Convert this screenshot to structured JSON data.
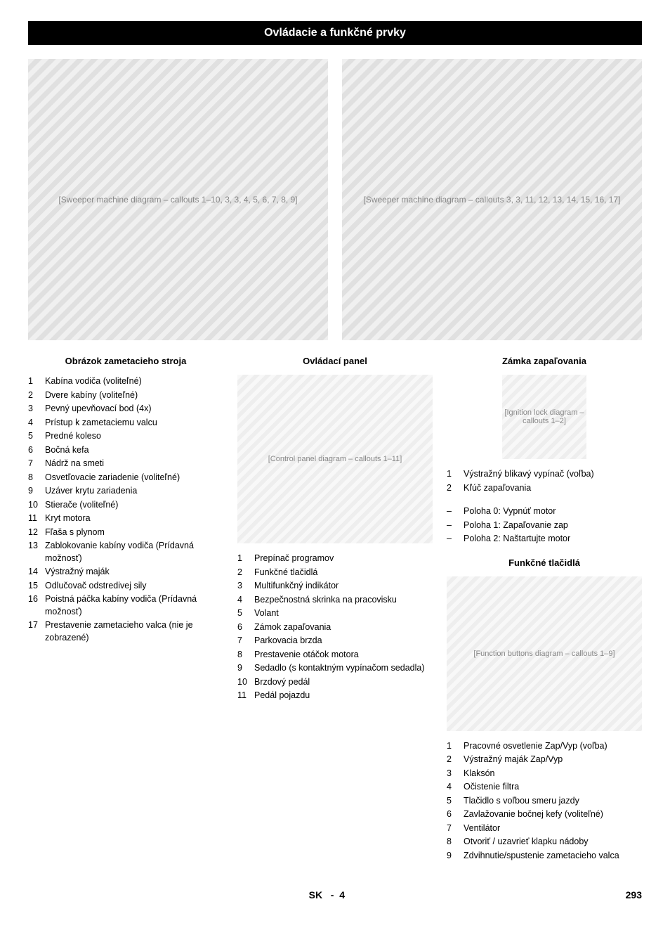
{
  "header": {
    "title": "Ovládacie a funkčné prvky"
  },
  "figures": {
    "left": {
      "alt": "[Sweeper machine diagram – callouts 1–10, 3, 3, 4, 5, 6, 7, 8, 9]",
      "callouts": [
        "1",
        "2",
        "3",
        "3",
        "4",
        "5",
        "6",
        "7",
        "8",
        "9",
        "10"
      ]
    },
    "right": {
      "alt": "[Sweeper machine diagram – callouts 3, 3, 11, 12, 13, 14, 15, 16, 17]",
      "callouts": [
        "14",
        "16",
        "15",
        "17",
        "13",
        "12",
        "3",
        "11",
        "3"
      ]
    }
  },
  "sections": {
    "sweeper": {
      "heading": "Obrázok zametacieho stroja",
      "items": [
        {
          "n": "1",
          "t": "Kabína vodiča (voliteľné)"
        },
        {
          "n": "2",
          "t": "Dvere kabíny (voliteľné)"
        },
        {
          "n": "3",
          "t": "Pevný upevňovací bod (4x)"
        },
        {
          "n": "4",
          "t": "Prístup k zametaciemu valcu"
        },
        {
          "n": "5",
          "t": "Predné koleso"
        },
        {
          "n": "6",
          "t": "Bočná kefa"
        },
        {
          "n": "7",
          "t": "Nádrž na smeti"
        },
        {
          "n": "8",
          "t": "Osvetľovacie zariadenie (voliteľné)"
        },
        {
          "n": "9",
          "t": "Uzáver krytu zariadenia"
        },
        {
          "n": "10",
          "t": "Stierače (voliteľné)"
        },
        {
          "n": "11",
          "t": "Kryt motora"
        },
        {
          "n": "12",
          "t": "Fľaša s plynom"
        },
        {
          "n": "13",
          "t": "Zablokovanie kabíny vodiča (Prídavná možnosť)"
        },
        {
          "n": "14",
          "t": "Výstražný maják"
        },
        {
          "n": "15",
          "t": "Odlučovač odstredivej sily"
        },
        {
          "n": "16",
          "t": "Poistná páčka kabíny vodiča (Prídavná možnosť)"
        },
        {
          "n": "17",
          "t": "Prestavenie zametacieho valca (nie je zobrazené)"
        }
      ]
    },
    "panel": {
      "heading": "Ovládací panel",
      "diag_alt": "[Control panel diagram – callouts 1–11]",
      "items": [
        {
          "n": "1",
          "t": "Prepínač programov"
        },
        {
          "n": "2",
          "t": "Funkčné tlačidlá"
        },
        {
          "n": "3",
          "t": "Multifunkčný indikátor"
        },
        {
          "n": "4",
          "t": "Bezpečnostná skrinka na pracovisku"
        },
        {
          "n": "5",
          "t": "Volant"
        },
        {
          "n": "6",
          "t": "Zámok zapaľovania"
        },
        {
          "n": "7",
          "t": "Parkovacia brzda"
        },
        {
          "n": "8",
          "t": "Prestavenie otáčok motora"
        },
        {
          "n": "9",
          "t": "Sedadlo (s kontaktným vypínačom sedadla)"
        },
        {
          "n": "10",
          "t": "Brzdový pedál"
        },
        {
          "n": "11",
          "t": "Pedál pojazdu"
        }
      ]
    },
    "ignition": {
      "heading": "Zámka zapaľovania",
      "diag_alt": "[Ignition lock diagram – callouts 1–2]",
      "items": [
        {
          "n": "1",
          "t": "Výstražný blikavý vypínač (voľba)"
        },
        {
          "n": "2",
          "t": "Kľúč zapaľovania"
        }
      ],
      "positions": [
        "Poloha 0: Vypnúť motor",
        "Poloha 1: Zapaľovanie zap",
        "Poloha 2: Naštartujte motor"
      ]
    },
    "buttons": {
      "heading": "Funkčné tlačidlá",
      "diag_alt": "[Function buttons diagram – callouts 1–9]",
      "items": [
        {
          "n": "1",
          "t": "Pracovné osvetlenie Zap/Vyp (voľba)"
        },
        {
          "n": "2",
          "t": "Výstražný maják Zap/Vyp"
        },
        {
          "n": "3",
          "t": "Klaksón"
        },
        {
          "n": "4",
          "t": "Očistenie filtra"
        },
        {
          "n": "5",
          "t": "Tlačidlo s voľbou smeru jazdy"
        },
        {
          "n": "6",
          "t": "Zavlažovanie bočnej kefy (voliteľné)"
        },
        {
          "n": "7",
          "t": "Ventilátor"
        },
        {
          "n": "8",
          "t": "Otvoriť / uzavrieť klapku nádoby"
        },
        {
          "n": "9",
          "t": "Zdvihnutie/spustenie zametacieho valca"
        }
      ]
    }
  },
  "footer": {
    "lang": "SK",
    "page_sep": "-",
    "page_local": "4",
    "page_global": "293"
  }
}
